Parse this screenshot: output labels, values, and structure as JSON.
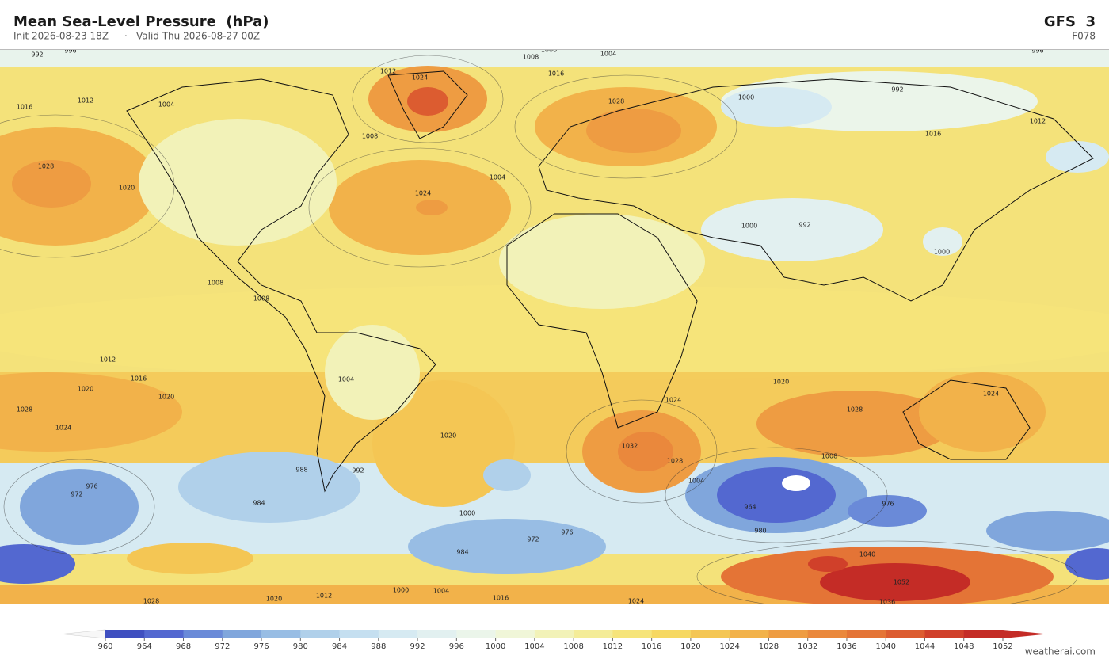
{
  "header": {
    "title": "Mean Sea-Level Pressure  (hPa)",
    "init": "Init 2026-08-23 18Z",
    "separator": "·",
    "valid": "Valid Thu 2026-08-27 00Z",
    "model": "GFS  3",
    "forecast_hour": "F078"
  },
  "contour_labels": [
    992,
    996,
    1000,
    1004,
    1008,
    1016,
    1012,
    1004,
    1012,
    1024,
    1016,
    1028,
    1000,
    992,
    996,
    1012,
    1016,
    1028,
    1020,
    1008,
    1024,
    1004,
    1000,
    992,
    1000,
    1008,
    1008,
    1012,
    1016,
    1020,
    1020,
    1028,
    1024,
    1004,
    1020,
    1024,
    1028,
    1024,
    1032,
    1028,
    1020,
    1008,
    1004,
    976,
    972,
    984,
    988,
    992,
    1000,
    976,
    972,
    984,
    964,
    980,
    976,
    1040,
    1052,
    1036,
    1000,
    1004,
    1016,
    1024,
    1028,
    1020,
    1012
  ],
  "colorbar": {
    "ticks": [
      960,
      964,
      968,
      972,
      976,
      980,
      984,
      988,
      992,
      996,
      1000,
      1004,
      1008,
      1012,
      1016,
      1020,
      1024,
      1028,
      1032,
      1036,
      1040,
      1044,
      1048,
      1052
    ],
    "colors": [
      "#3f4fc0",
      "#5368d0",
      "#6a8ad8",
      "#80a6dc",
      "#98bde4",
      "#b0d0ea",
      "#c5dff0",
      "#d6eaf2",
      "#e2f0f0",
      "#ebf5ea",
      "#f0f6d8",
      "#f2f2b8",
      "#f4ec98",
      "#f6e47a",
      "#f6d862",
      "#f4c654",
      "#f2b24a",
      "#ee9c42",
      "#ea883c",
      "#e47436",
      "#dc5c30",
      "#d0402a",
      "#c42c26"
    ],
    "under_color": "#f7f7f7",
    "over_color": "#c42c26"
  },
  "credit": "weatherai.com"
}
